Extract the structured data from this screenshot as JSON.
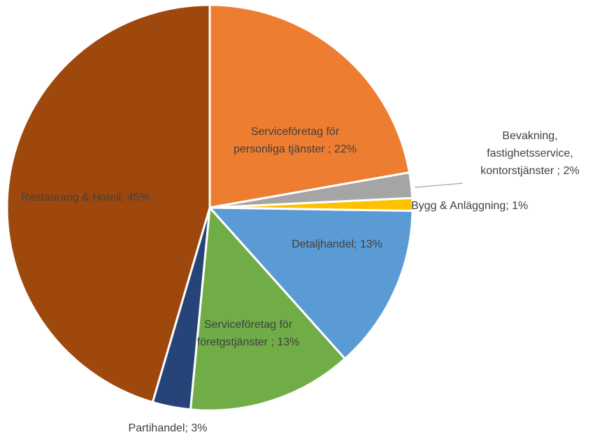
{
  "chart_data": {
    "type": "pie",
    "values": [
      22,
      2,
      1,
      13,
      13,
      3,
      45
    ],
    "value_labels": [
      "Serviceföretag för personliga tjänster ; 22%",
      "Bevakning, fastighetsservice, kontorstjänster ; 2%",
      "Bygg & Anläggning; 1%",
      "Detaljhandel; 13%",
      "Serviceföretag för företgstjänster ; 13%",
      "Partihandel; 3%",
      "Restaurang & Hoteil; 45%"
    ],
    "colors": [
      "#ed7d31",
      "#a5a5a5",
      "#ffc000",
      "#5b9bd5",
      "#70ad47",
      "#264478",
      "#9e480e"
    ]
  }
}
